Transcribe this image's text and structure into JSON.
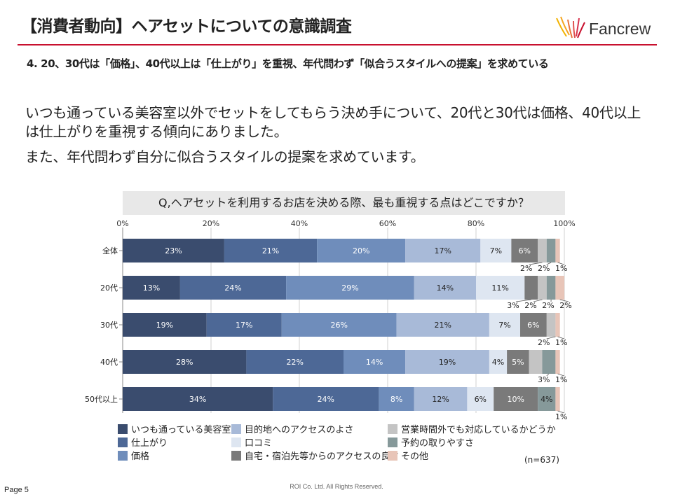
{
  "header": {
    "title": "【消費者動向】ヘアセットについての意識調査",
    "logo_text": "Fancrew",
    "subtitle": "4.  20、30代は「価格」、40代以上は「仕上がり」を重視、年代問わず「似合うスタイルへの提案」を求めている"
  },
  "body": {
    "paragraph1": "いつも通っている美容室以外でセットをしてもらう決め手について、20代と30代は価格、40代以上は仕上がりを重視する傾向にありました。",
    "paragraph2": "また、年代問わず自分に似合うスタイルの提案を求めています。"
  },
  "question": "Q,ヘアセットを利用するお店を決める際、最も重視する点はどこですか？",
  "note": "(n=637)",
  "footer": {
    "page": "Page 5",
    "copyright": "ROI Co. Ltd. All Rights Reserved."
  },
  "chart_data": {
    "type": "bar",
    "orientation": "horizontal",
    "stacked": true,
    "xlim": [
      0,
      100
    ],
    "x_ticks": [
      "0%",
      "20%",
      "40%",
      "60%",
      "80%",
      "100%"
    ],
    "categories": [
      "全体",
      "20代",
      "30代",
      "40代",
      "50代以上"
    ],
    "series": [
      {
        "name": "いつも通っている美容室",
        "color": "#3a4c6e",
        "values": [
          23,
          13,
          19,
          28,
          34
        ]
      },
      {
        "name": "仕上がり",
        "color": "#4d6896",
        "values": [
          21,
          24,
          17,
          22,
          24
        ]
      },
      {
        "name": "価格",
        "color": "#6f8dbb",
        "values": [
          20,
          29,
          26,
          14,
          8
        ]
      },
      {
        "name": "目的地へのアクセスのよさ",
        "color": "#a8bad8",
        "values": [
          17,
          14,
          21,
          19,
          12
        ]
      },
      {
        "name": "口コミ",
        "color": "#dee6f1",
        "values": [
          7,
          11,
          7,
          4,
          6
        ]
      },
      {
        "name": "自宅・宿泊先等からのアクセスの良さ",
        "color": "#7a7a7a",
        "values": [
          6,
          3,
          6,
          5,
          10
        ]
      },
      {
        "name": "営業時間外でも対応しているかどうか",
        "color": "#c4c4c4",
        "values": [
          2,
          2,
          2,
          3,
          0
        ]
      },
      {
        "name": "予約の取りやすさ",
        "color": "#86999a",
        "values": [
          2,
          2,
          0,
          3,
          4
        ]
      },
      {
        "name": "その他",
        "color": "#e8c5b8",
        "values": [
          1,
          2,
          1,
          1,
          1
        ]
      }
    ],
    "bar_labels": [
      [
        "23%",
        "21%",
        "20%",
        "17%",
        "7%",
        "6%",
        "",
        "",
        ""
      ],
      [
        "13%",
        "24%",
        "29%",
        "14%",
        "11%",
        "",
        "",
        "",
        ""
      ],
      [
        "19%",
        "17%",
        "26%",
        "21%",
        "7%",
        "6%",
        "",
        "",
        ""
      ],
      [
        "28%",
        "22%",
        "14%",
        "19%",
        "4%",
        "5%",
        "",
        "",
        ""
      ],
      [
        "34%",
        "24%",
        "8%",
        "12%",
        "6%",
        "10%",
        "",
        "4%",
        ""
      ]
    ],
    "callouts": [
      [
        "2%",
        "2%",
        "1%"
      ],
      [
        "3%",
        "2%",
        "2%",
        "2%"
      ],
      [
        "2%",
        "1%"
      ],
      [
        "3%",
        "1%"
      ],
      [
        "1%"
      ]
    ],
    "legend_position": "bottom",
    "grid": true
  }
}
